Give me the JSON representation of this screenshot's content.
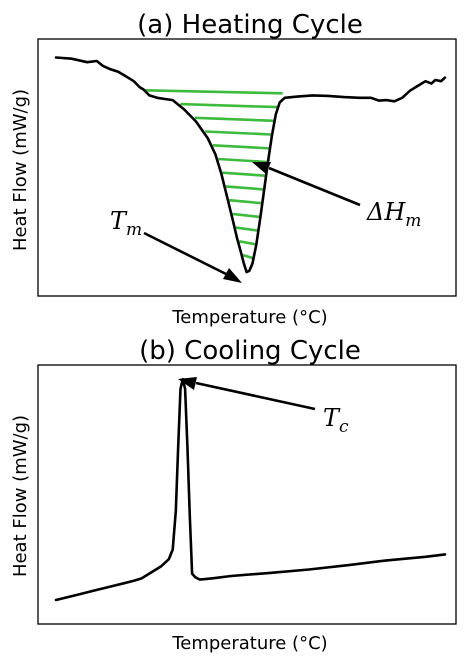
{
  "chart_data": [
    {
      "type": "line",
      "title": "(a) Heating Cycle",
      "xlabel": "Temperature (°C)",
      "ylabel": "Heat Flow (mW/g)",
      "ticks": "none",
      "xlim": [
        0,
        100
      ],
      "ylim": [
        0,
        100
      ],
      "grid": false,
      "series": [
        {
          "color": "#000000",
          "x": [
            0,
            4,
            8,
            10.5,
            12,
            14,
            16,
            18,
            20,
            21.5,
            22.5,
            24,
            26,
            28,
            30,
            33,
            36,
            39,
            41,
            42.5,
            44,
            45.5,
            46.5,
            47.5,
            48.3,
            49,
            49.7,
            50.5,
            51.5,
            52.5,
            53.5,
            54.5,
            55.5,
            56.5,
            57.5,
            58.8,
            62,
            66,
            70,
            74,
            78,
            81,
            83,
            85,
            87,
            89,
            91,
            93,
            95,
            96.5,
            97.5,
            99,
            100
          ],
          "y": [
            96,
            95.5,
            94,
            94.5,
            92.5,
            91,
            90,
            88,
            86,
            83.5,
            82.5,
            80,
            79,
            78.5,
            78,
            74,
            69,
            62,
            55,
            47,
            37,
            27,
            20,
            14,
            9,
            5.5,
            6,
            9,
            17,
            28,
            40,
            52,
            63,
            72,
            77,
            79,
            79.5,
            80,
            79.8,
            79.3,
            79,
            79,
            77.8,
            78,
            77.5,
            79,
            82,
            84,
            86,
            85,
            86.5,
            86,
            87.5
          ]
        }
      ],
      "annotations": [
        {
          "text": "T",
          "subscript": "m",
          "label": "Tm",
          "arrow_to": [
            49,
            5.5
          ]
        },
        {
          "text": "ΔH",
          "subscript": "m",
          "label": "ΔHm",
          "arrow_to": [
            55.5,
            52
          ]
        }
      ],
      "fill": {
        "type": "hatch",
        "color": "#3dbb3d",
        "orientation": "horizontal",
        "region": "peak area between baseline and curve"
      }
    },
    {
      "type": "line",
      "title": "(b) Cooling Cycle",
      "xlabel": "Temperature (°C)",
      "ylabel": "Heat Flow (mW/g)",
      "ticks": "none",
      "xlim": [
        0,
        100
      ],
      "ylim": [
        0,
        100
      ],
      "grid": false,
      "series": [
        {
          "color": "#000000",
          "x": [
            0,
            5,
            10,
            15,
            20,
            22,
            24.5,
            27,
            29,
            30,
            30.8,
            31.4,
            32,
            32.6,
            33.2,
            33.8,
            34.4,
            35,
            35.8,
            37,
            40,
            45,
            55,
            65,
            75,
            85,
            95,
            100
          ],
          "y": [
            5,
            7,
            9,
            11,
            13,
            14,
            16.5,
            19,
            22,
            26,
            42,
            68,
            93,
            97,
            93,
            68,
            40,
            16,
            14.5,
            13.5,
            14,
            15,
            16.3,
            17.7,
            19.5,
            21.5,
            23,
            24
          ]
        }
      ],
      "annotations": [
        {
          "text": "T",
          "subscript": "c",
          "label": "Tc",
          "arrow_to": [
            33,
            97
          ]
        }
      ]
    }
  ]
}
